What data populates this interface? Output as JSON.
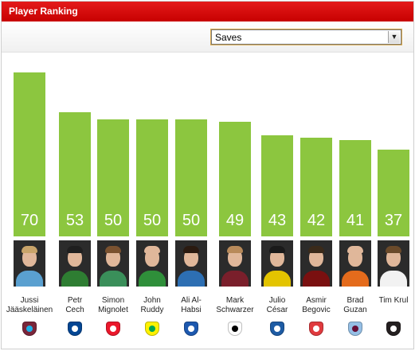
{
  "header": {
    "title": "Player Ranking"
  },
  "metric_select": {
    "selected": "Saves"
  },
  "chart_data": {
    "type": "bar",
    "ylim": [
      0,
      75
    ],
    "categories": [
      "Jussi Jääskeläinen",
      "Petr Cech",
      "Simon Mignolet",
      "John Ruddy",
      "Ali Al-Habsi",
      "Mark Schwarzer",
      "Julio César",
      "Asmir Begovic",
      "Brad Guzan",
      "Tim Krul"
    ],
    "values": [
      70,
      53,
      50,
      50,
      50,
      49,
      43,
      42,
      41,
      37
    ],
    "bar_color": "#8cc63f"
  },
  "players": [
    {
      "name_line1": "Jussi",
      "name_line2": "Jääskeläinen",
      "value": "70",
      "club_icon": "west-ham-crest-icon",
      "crest_color": "#7a263a",
      "crest_accent": "#1bb1e7",
      "kit_color": "#5aa0d0",
      "hair_color": "#c9a46a"
    },
    {
      "name_line1": "Petr",
      "name_line2": "Cech",
      "value": "53",
      "club_icon": "chelsea-crest-icon",
      "crest_color": "#034694",
      "crest_accent": "#ffffff",
      "kit_color": "#2e7d32",
      "hair_color": "#1f1f1f"
    },
    {
      "name_line1": "Simon",
      "name_line2": "Mignolet",
      "value": "50",
      "club_icon": "sunderland-crest-icon",
      "crest_color": "#eb172b",
      "crest_accent": "#ffffff",
      "kit_color": "#3a8f5a",
      "hair_color": "#7a5230"
    },
    {
      "name_line1": "John",
      "name_line2": "Ruddy",
      "value": "50",
      "club_icon": "norwich-crest-icon",
      "crest_color": "#fff200",
      "crest_accent": "#00a650",
      "kit_color": "#2f8f3a",
      "hair_color": "#e0b79a"
    },
    {
      "name_line1": "Ali Al-",
      "name_line2": "Habsi",
      "value": "50",
      "club_icon": "wigan-crest-icon",
      "crest_color": "#1d59af",
      "crest_accent": "#ffffff",
      "kit_color": "#2d6fb3",
      "hair_color": "#2a1a10"
    },
    {
      "name_line1": "Mark",
      "name_line2": "Schwarzer",
      "value": "49",
      "club_icon": "fulham-crest-icon",
      "crest_color": "#ffffff",
      "crest_accent": "#000000",
      "kit_color": "#7a1f2b",
      "hair_color": "#b88a5a"
    },
    {
      "name_line1": "Julio",
      "name_line2": "César",
      "value": "43",
      "club_icon": "qpr-crest-icon",
      "crest_color": "#1d5ba4",
      "crest_accent": "#ffffff",
      "kit_color": "#e3c400",
      "hair_color": "#1a1a1a"
    },
    {
      "name_line1": "Asmir",
      "name_line2": "Begovic",
      "value": "42",
      "club_icon": "stoke-crest-icon",
      "crest_color": "#e03a3e",
      "crest_accent": "#ffffff",
      "kit_color": "#7a1010",
      "hair_color": "#3a2a1a"
    },
    {
      "name_line1": "Brad",
      "name_line2": "Guzan",
      "value": "41",
      "club_icon": "aston-villa-crest-icon",
      "crest_color": "#95bfe5",
      "crest_accent": "#670e36",
      "kit_color": "#e46b1c",
      "hair_color": "#e0b79a"
    },
    {
      "name_line1": "Tim Krul",
      "name_line2": "",
      "value": "37",
      "club_icon": "newcastle-crest-icon",
      "crest_color": "#241f20",
      "crest_accent": "#ffffff",
      "kit_color": "#f2f2f2",
      "hair_color": "#6a4a2a"
    }
  ]
}
